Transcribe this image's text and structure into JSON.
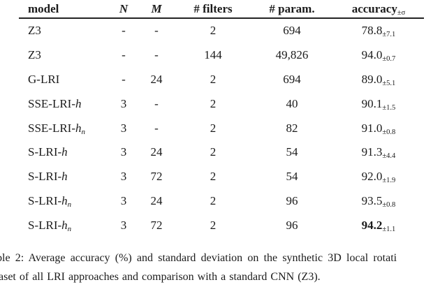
{
  "table": {
    "headers": {
      "model": "model",
      "n": "N",
      "m": "M",
      "filters": "# filters",
      "params": "# param.",
      "accuracy": "accuracy",
      "accuracy_sub": "±σ"
    },
    "rows": [
      {
        "model_prefix": "Z3",
        "model_var": "",
        "model_sub": "",
        "n": "-",
        "m": "-",
        "filters": "2",
        "params": "694",
        "acc": "78.8",
        "acc_sub": "±7.1"
      },
      {
        "model_prefix": "Z3",
        "model_var": "",
        "model_sub": "",
        "n": "-",
        "m": "-",
        "filters": "144",
        "params": "49,826",
        "acc": "94.0",
        "acc_sub": "±0.7"
      },
      {
        "model_prefix": "G-LRI",
        "model_var": "",
        "model_sub": "",
        "n": "-",
        "m": "24",
        "filters": "2",
        "params": "694",
        "acc": "89.0",
        "acc_sub": "±5.1"
      },
      {
        "model_prefix": "SSE-LRI-",
        "model_var": "h",
        "model_sub": "",
        "n": "3",
        "m": "-",
        "filters": "2",
        "params": "40",
        "acc": "90.1",
        "acc_sub": "±1.5"
      },
      {
        "model_prefix": "SSE-LRI-",
        "model_var": "h",
        "model_sub": "n",
        "n": "3",
        "m": "-",
        "filters": "2",
        "params": "82",
        "acc": "91.0",
        "acc_sub": "±0.8"
      },
      {
        "model_prefix": "S-LRI-",
        "model_var": "h",
        "model_sub": "",
        "n": "3",
        "m": "24",
        "filters": "2",
        "params": "54",
        "acc": "91.3",
        "acc_sub": "±4.4"
      },
      {
        "model_prefix": "S-LRI-",
        "model_var": "h",
        "model_sub": "",
        "n": "3",
        "m": "72",
        "filters": "2",
        "params": "54",
        "acc": "92.0",
        "acc_sub": "±1.9"
      },
      {
        "model_prefix": "S-LRI-",
        "model_var": "h",
        "model_sub": "n",
        "n": "3",
        "m": "24",
        "filters": "2",
        "params": "96",
        "acc": "93.5",
        "acc_sub": "±0.8"
      },
      {
        "model_prefix": "S-LRI-",
        "model_var": "h",
        "model_sub": "n",
        "n": "3",
        "m": "72",
        "filters": "2",
        "params": "96",
        "acc": "94.2",
        "acc_sub": "±1.1"
      }
    ]
  },
  "caption": {
    "line1": "ble 2: Average accuracy (%) and standard deviation on the synthetic 3D local rotati",
    "line2": "aset of all LRI approaches and comparison with a standard CNN (Z3)."
  }
}
